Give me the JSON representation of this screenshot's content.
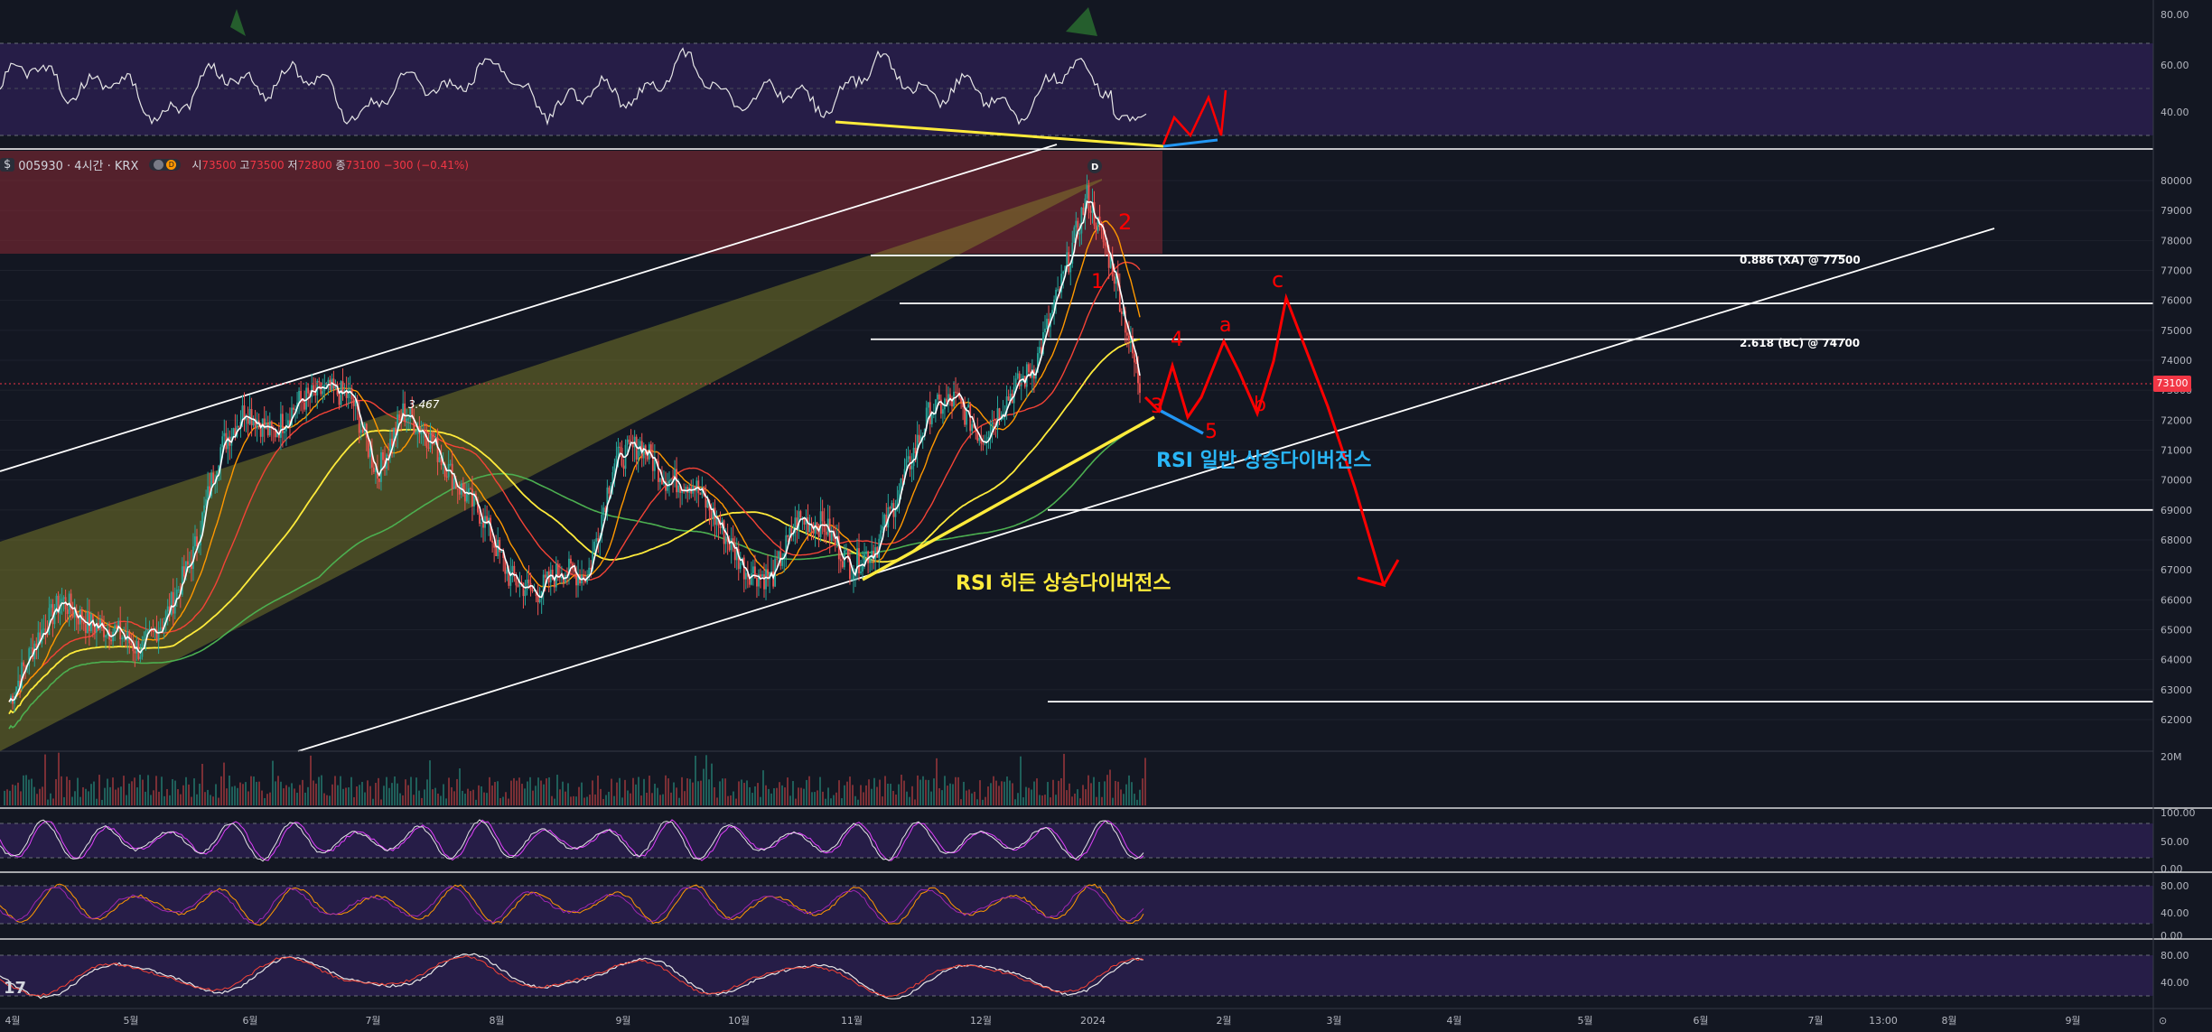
{
  "header": {
    "badge": "$",
    "symbol": "005930 · 4시간 · KRX",
    "open_k": "시",
    "open": "73500",
    "high_k": "고",
    "high": "73500",
    "low_k": "저",
    "low": "72800",
    "close_k": "종",
    "close": "73100",
    "change": "−300 (−0.41%)",
    "pill_marker": "D"
  },
  "price_tag": "73100",
  "volume_label": "20M",
  "wave_count_label": "3.467",
  "peak_marker": "D",
  "fib_levels": [
    {
      "label": "0.886 (XA) @ 77500",
      "price": 77500
    },
    {
      "label": "2.618 (BC) @ 74700",
      "price": 74700
    }
  ],
  "horizontal_levels": [
    77500,
    75900,
    74700,
    69000,
    62600
  ],
  "annotations": {
    "rsi_regular": "RSI 일반 상승다이버전스",
    "rsi_hidden": "RSI 히든 상승다이버전스",
    "wave_marks": [
      "1",
      "2",
      "3",
      "4",
      "5",
      "a",
      "b",
      "c"
    ]
  },
  "logo": "17",
  "colors": {
    "background": "#131722",
    "candle_up": "#26a69a",
    "candle_down": "#ef5350",
    "accent_yellow": "#ffeb3b",
    "accent_blue": "#2196f3",
    "accent_red": "#ff0000",
    "panel_purple": "#2a1f4d"
  },
  "chart_data": {
    "type": "line",
    "title": "005930 · 4시간 · KRX",
    "x_ticks": [
      "4월",
      "5월",
      "6월",
      "7월",
      "8월",
      "9월",
      "10월",
      "11월",
      "12월",
      "2024",
      "2월",
      "3월",
      "4월",
      "5월",
      "6월",
      "7월",
      "13:00",
      "8월",
      "9월"
    ],
    "y_ticks": [
      62000,
      63000,
      64000,
      65000,
      66000,
      67000,
      68000,
      69000,
      70000,
      71000,
      72000,
      73000,
      74000,
      75000,
      76000,
      77000,
      78000,
      79000,
      80000
    ],
    "ylim": [
      61000,
      80500
    ],
    "rsi_ticks": [
      "80.00",
      "60.00",
      "40.00"
    ],
    "stoch_ticks": [
      "100.00",
      "50.00",
      "0.00"
    ],
    "stoch2_ticks": [
      "80.00",
      "40.00",
      "0.00"
    ],
    "macd_ticks": [
      "80.00",
      "40.00"
    ],
    "series": [
      {
        "values": [
          62600,
          64600,
          66000,
          65200,
          65000,
          64300,
          65500,
          67500,
          71000,
          72400,
          71500,
          72600,
          73000,
          72800,
          70200,
          72300,
          71400,
          69900,
          68800,
          66800,
          66200,
          67000,
          66800,
          70600,
          71200,
          70000,
          69900,
          68500,
          67000,
          66700,
          68700,
          68500,
          67100,
          67800,
          70000,
          72300,
          72700,
          71400,
          72800,
          73800,
          76500,
          79500,
          77000,
          73100
        ]
      }
    ]
  }
}
